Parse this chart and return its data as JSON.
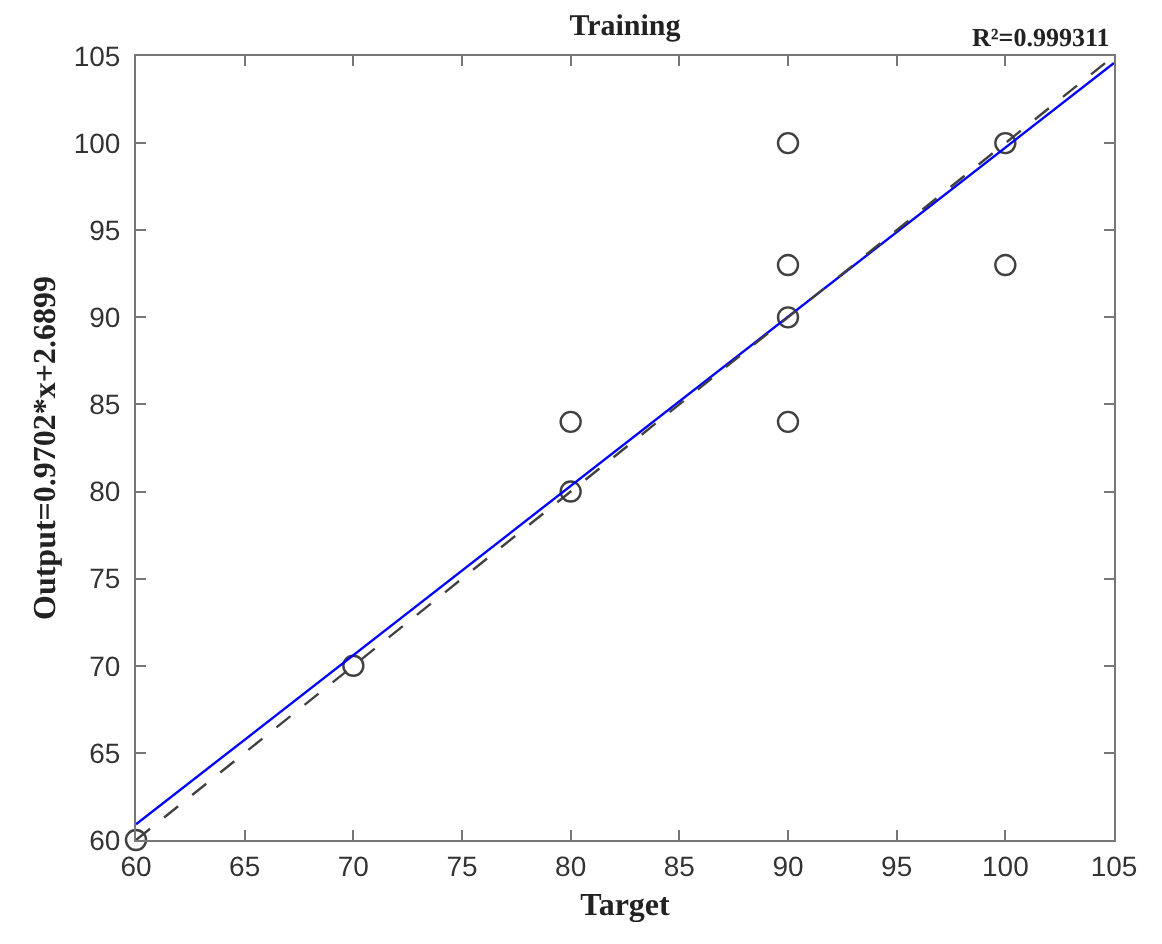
{
  "chart_data": {
    "type": "scatter",
    "title": "Training",
    "xlabel": "Target",
    "ylabel": "Output=0.9702*x+2.6899",
    "annotations": [
      "R²=0.999311"
    ],
    "series": [
      {
        "color": "#404040",
        "marker": "circle",
        "x": [
          60,
          70,
          80,
          80,
          90,
          90,
          90,
          90,
          100,
          100
        ],
        "values": [
          60,
          70,
          80,
          84,
          84,
          90,
          93,
          100,
          93,
          100
        ]
      },
      {
        "type": "line",
        "color": "#0000ff",
        "line_style": "solid",
        "marker": "none",
        "x": [
          60,
          105
        ],
        "values": [
          60.9,
          104.6
        ]
      },
      {
        "type": "line",
        "color": "#404040",
        "line_style": "dashed",
        "marker": "none",
        "x": [
          60,
          105
        ],
        "values": [
          60,
          105
        ]
      }
    ],
    "xlim": [
      60,
      105
    ],
    "ylim": [
      60,
      105
    ],
    "xticks": [
      60,
      65,
      70,
      75,
      80,
      85,
      90,
      95,
      100,
      105
    ],
    "yticks": [
      60,
      65,
      70,
      75,
      80,
      85,
      90,
      95,
      100,
      105
    ],
    "legend": false
  }
}
